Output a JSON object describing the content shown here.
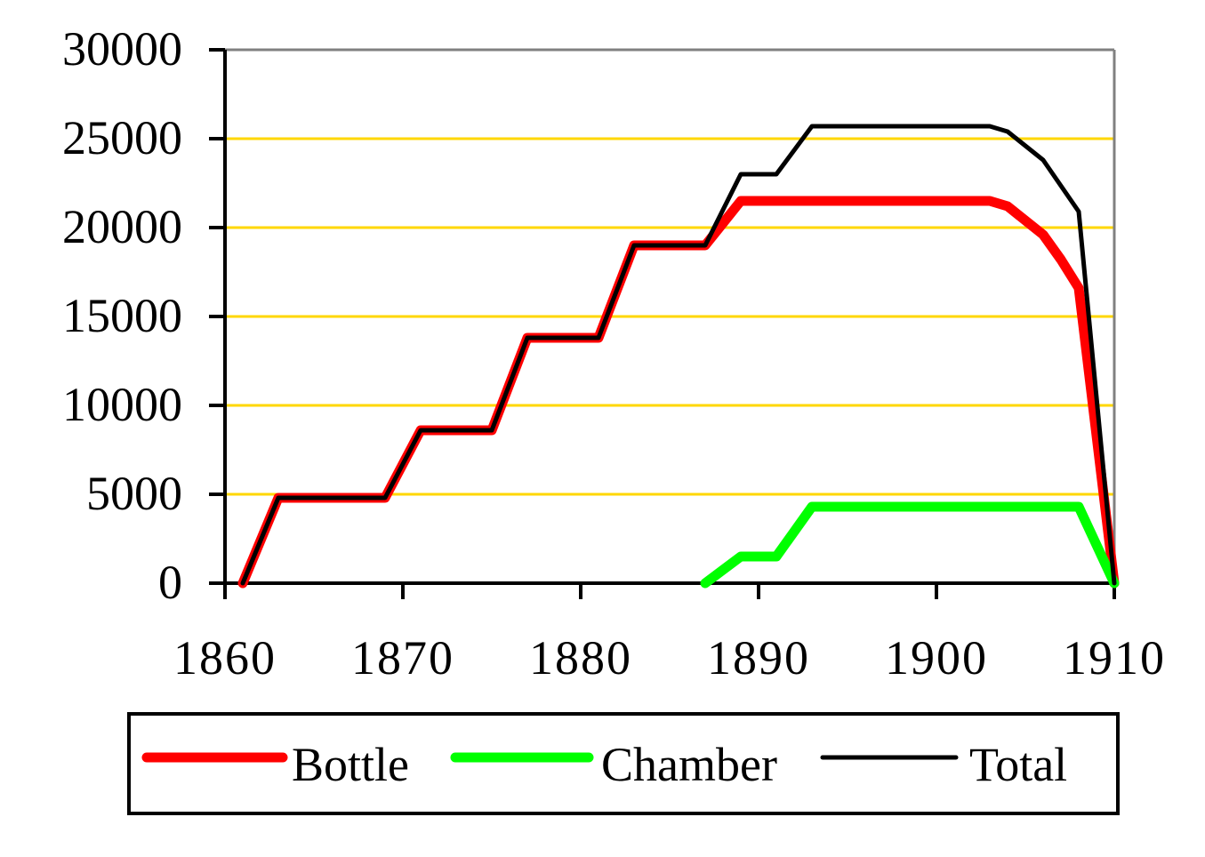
{
  "chart_data": {
    "type": "line",
    "title": "",
    "xlabel": "",
    "ylabel": "",
    "xlim": [
      1860,
      1910
    ],
    "ylim": [
      0,
      30000
    ],
    "x_ticks": [
      1860,
      1870,
      1880,
      1890,
      1900,
      1910
    ],
    "y_ticks": [
      0,
      5000,
      10000,
      15000,
      20000,
      25000,
      30000
    ],
    "x_tick_labels": [
      "1860",
      "1870",
      "1880",
      "1890",
      "1900",
      "1910"
    ],
    "y_tick_labels": [
      "0",
      "5000",
      "10000",
      "15000",
      "20000",
      "25000",
      "30000"
    ],
    "grid": {
      "horizontal": true,
      "color": "#FFD700"
    },
    "legend_position": "bottom",
    "series": [
      {
        "name": "Bottle",
        "color": "#FF0000",
        "points": [
          [
            1861,
            0
          ],
          [
            1863,
            4800
          ],
          [
            1869,
            4800
          ],
          [
            1871,
            8600
          ],
          [
            1875,
            8600
          ],
          [
            1877,
            13800
          ],
          [
            1881,
            13800
          ],
          [
            1883,
            19000
          ],
          [
            1887,
            19000
          ],
          [
            1889,
            21500
          ],
          [
            1903,
            21500
          ],
          [
            1904,
            21200
          ],
          [
            1906,
            19600
          ],
          [
            1907,
            18200
          ],
          [
            1908,
            16600
          ],
          [
            1910,
            0
          ]
        ]
      },
      {
        "name": "Chamber",
        "color": "#00FF00",
        "points": [
          [
            1887,
            0
          ],
          [
            1889,
            1500
          ],
          [
            1891,
            1500
          ],
          [
            1893,
            4300
          ],
          [
            1908,
            4300
          ],
          [
            1910,
            0
          ]
        ]
      },
      {
        "name": "Total",
        "color": "#000000",
        "points": [
          [
            1861,
            0
          ],
          [
            1863,
            4800
          ],
          [
            1869,
            4800
          ],
          [
            1871,
            8600
          ],
          [
            1875,
            8600
          ],
          [
            1877,
            13800
          ],
          [
            1881,
            13800
          ],
          [
            1883,
            19000
          ],
          [
            1887,
            19000
          ],
          [
            1889,
            23000
          ],
          [
            1891,
            23000
          ],
          [
            1893,
            25700
          ],
          [
            1903,
            25700
          ],
          [
            1904,
            25400
          ],
          [
            1906,
            23800
          ],
          [
            1908,
            20900
          ],
          [
            1910,
            0
          ]
        ]
      }
    ]
  }
}
